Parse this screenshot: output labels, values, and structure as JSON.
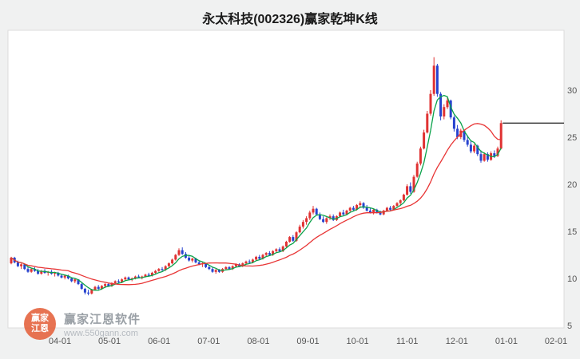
{
  "title": "永太科技(002326)赢家乾坤K线",
  "watermark": {
    "logo_line1": "赢家",
    "logo_line2": "江恩",
    "brand": "赢家江恩软件",
    "url": "www.550gann.com"
  },
  "chart_data": {
    "type": "candlestick",
    "title": "永太科技(002326)赢家乾坤K线",
    "x_labels": [
      "04-01",
      "05-01",
      "06-01",
      "07-01",
      "08-01",
      "09-01",
      "10-01",
      "11-01",
      "12-01",
      "01-01",
      "02-01"
    ],
    "y_ticks": [
      30,
      25,
      20,
      15,
      10,
      5
    ],
    "y_axis_side": "right",
    "grid": false,
    "visible_price_range": [
      5,
      36.3
    ],
    "colors": {
      "up": "#e03232",
      "down": "#2743cf",
      "ma_fast": "#0aa24a",
      "ma_slow": "#e83535",
      "feature_line": "#333333",
      "plot_bg": "#ffffff",
      "axis_text": "#555555"
    },
    "ma_fast_window": 5,
    "ma_slow_window": 18,
    "feature_line": {
      "value": 26.5,
      "color": "#333333"
    },
    "candles": [
      [
        11.6,
        12.3,
        11.5,
        12.2
      ],
      [
        12.2,
        12.3,
        11.6,
        11.7
      ],
      [
        11.7,
        11.9,
        11.2,
        11.3
      ],
      [
        11.3,
        11.6,
        11.0,
        11.5
      ],
      [
        11.5,
        11.5,
        10.9,
        11.0
      ],
      [
        11.0,
        11.2,
        10.6,
        10.7
      ],
      [
        10.7,
        11.1,
        10.6,
        11.0
      ],
      [
        11.0,
        11.2,
        10.7,
        10.8
      ],
      [
        10.8,
        11.0,
        10.4,
        10.5
      ],
      [
        10.5,
        10.9,
        10.4,
        10.8
      ],
      [
        10.8,
        11.0,
        10.5,
        10.6
      ],
      [
        10.6,
        10.8,
        10.3,
        10.7
      ],
      [
        10.7,
        10.9,
        10.4,
        10.5
      ],
      [
        10.5,
        10.7,
        10.2,
        10.6
      ],
      [
        10.6,
        10.7,
        10.2,
        10.3
      ],
      [
        10.3,
        10.5,
        10.0,
        10.1
      ],
      [
        10.1,
        10.4,
        9.9,
        10.3
      ],
      [
        10.3,
        10.4,
        9.9,
        10.0
      ],
      [
        10.0,
        10.1,
        9.6,
        9.7
      ],
      [
        9.7,
        10.0,
        9.5,
        9.9
      ],
      [
        9.9,
        9.9,
        9.3,
        9.4
      ],
      [
        9.4,
        9.5,
        8.8,
        8.9
      ],
      [
        8.9,
        9.0,
        8.3,
        8.5
      ],
      [
        8.5,
        8.8,
        8.2,
        8.4
      ],
      [
        8.4,
        8.9,
        8.3,
        8.8
      ],
      [
        8.8,
        9.2,
        8.7,
        9.1
      ],
      [
        9.1,
        9.3,
        8.8,
        8.9
      ],
      [
        8.9,
        9.3,
        8.8,
        9.2
      ],
      [
        9.2,
        9.5,
        9.0,
        9.4
      ],
      [
        9.4,
        9.5,
        9.1,
        9.2
      ],
      [
        9.2,
        9.6,
        9.1,
        9.5
      ],
      [
        9.5,
        9.8,
        9.4,
        9.7
      ],
      [
        9.7,
        9.9,
        9.5,
        9.6
      ],
      [
        9.6,
        10.0,
        9.5,
        9.9
      ],
      [
        9.9,
        10.2,
        9.8,
        10.1
      ],
      [
        10.1,
        10.2,
        9.8,
        9.9
      ],
      [
        9.9,
        10.1,
        9.7,
        10.0
      ],
      [
        10.0,
        10.3,
        9.9,
        10.2
      ],
      [
        10.2,
        10.4,
        10.0,
        10.1
      ],
      [
        10.1,
        10.3,
        9.9,
        10.2
      ],
      [
        10.2,
        10.5,
        10.1,
        10.4
      ],
      [
        10.4,
        10.6,
        10.2,
        10.3
      ],
      [
        10.3,
        10.7,
        10.2,
        10.6
      ],
      [
        10.6,
        10.9,
        10.5,
        10.8
      ],
      [
        10.8,
        11.1,
        10.7,
        11.0
      ],
      [
        11.0,
        11.2,
        10.8,
        10.9
      ],
      [
        10.9,
        11.4,
        10.8,
        11.3
      ],
      [
        11.3,
        11.7,
        11.2,
        11.6
      ],
      [
        11.6,
        12.1,
        11.5,
        12.0
      ],
      [
        12.0,
        12.6,
        11.9,
        12.5
      ],
      [
        12.5,
        13.2,
        12.4,
        13.0
      ],
      [
        13.0,
        13.3,
        12.5,
        12.6
      ],
      [
        12.6,
        12.8,
        12.1,
        12.2
      ],
      [
        12.2,
        12.4,
        11.8,
        11.9
      ],
      [
        11.9,
        12.2,
        11.7,
        12.1
      ],
      [
        12.1,
        12.2,
        11.6,
        11.7
      ],
      [
        11.7,
        11.9,
        11.4,
        11.5
      ],
      [
        11.5,
        11.7,
        11.2,
        11.6
      ],
      [
        11.6,
        11.6,
        11.1,
        11.2
      ],
      [
        11.2,
        11.4,
        10.9,
        11.0
      ],
      [
        11.0,
        11.2,
        10.6,
        10.7
      ],
      [
        10.7,
        11.0,
        10.5,
        10.9
      ],
      [
        10.9,
        11.0,
        10.6,
        10.7
      ],
      [
        10.7,
        11.1,
        10.6,
        11.0
      ],
      [
        11.0,
        11.3,
        10.9,
        11.2
      ],
      [
        11.2,
        11.3,
        10.9,
        11.0
      ],
      [
        11.0,
        11.4,
        10.9,
        11.3
      ],
      [
        11.3,
        11.6,
        11.2,
        11.5
      ],
      [
        11.5,
        11.6,
        11.2,
        11.3
      ],
      [
        11.3,
        11.7,
        11.2,
        11.6
      ],
      [
        11.6,
        11.9,
        11.5,
        11.8
      ],
      [
        11.8,
        12.0,
        11.6,
        11.7
      ],
      [
        11.7,
        12.1,
        11.6,
        12.0
      ],
      [
        12.0,
        12.4,
        11.9,
        12.3
      ],
      [
        12.3,
        12.5,
        12.0,
        12.1
      ],
      [
        12.1,
        12.6,
        12.0,
        12.5
      ],
      [
        12.5,
        12.8,
        12.3,
        12.7
      ],
      [
        12.7,
        12.9,
        12.4,
        12.5
      ],
      [
        12.5,
        13.0,
        12.4,
        12.9
      ],
      [
        12.9,
        13.2,
        12.7,
        13.1
      ],
      [
        13.1,
        13.3,
        12.8,
        12.9
      ],
      [
        12.9,
        13.5,
        12.8,
        13.4
      ],
      [
        13.4,
        14.0,
        13.3,
        13.9
      ],
      [
        13.9,
        14.5,
        13.8,
        14.4
      ],
      [
        14.4,
        14.6,
        13.9,
        14.0
      ],
      [
        14.0,
        15.0,
        13.9,
        14.9
      ],
      [
        14.9,
        15.7,
        14.8,
        15.5
      ],
      [
        15.5,
        16.2,
        15.3,
        16.0
      ],
      [
        16.0,
        16.6,
        15.7,
        16.4
      ],
      [
        16.4,
        17.2,
        16.2,
        17.0
      ],
      [
        17.0,
        17.7,
        16.8,
        17.4
      ],
      [
        17.4,
        17.5,
        16.7,
        16.8
      ],
      [
        16.8,
        17.0,
        16.2,
        16.3
      ],
      [
        16.3,
        16.6,
        15.9,
        16.0
      ],
      [
        16.0,
        16.5,
        15.8,
        16.4
      ],
      [
        16.4,
        16.8,
        16.2,
        16.6
      ],
      [
        16.6,
        16.8,
        16.1,
        16.2
      ],
      [
        16.2,
        16.7,
        16.1,
        16.6
      ],
      [
        16.6,
        17.1,
        16.5,
        17.0
      ],
      [
        17.0,
        17.3,
        16.7,
        16.8
      ],
      [
        16.8,
        17.3,
        16.7,
        17.2
      ],
      [
        17.2,
        17.6,
        17.0,
        17.5
      ],
      [
        17.5,
        17.7,
        17.2,
        17.3
      ],
      [
        17.3,
        17.9,
        17.2,
        17.8
      ],
      [
        17.8,
        18.2,
        17.6,
        18.0
      ],
      [
        18.0,
        18.1,
        17.4,
        17.5
      ],
      [
        17.5,
        17.8,
        17.1,
        17.2
      ],
      [
        17.2,
        17.5,
        16.9,
        17.0
      ],
      [
        17.0,
        17.4,
        16.8,
        17.3
      ],
      [
        17.3,
        17.4,
        16.9,
        17.0
      ],
      [
        17.0,
        17.2,
        16.7,
        16.8
      ],
      [
        16.8,
        17.3,
        16.7,
        17.2
      ],
      [
        17.2,
        17.6,
        17.1,
        17.5
      ],
      [
        17.5,
        17.7,
        17.2,
        17.3
      ],
      [
        17.3,
        17.8,
        17.2,
        17.7
      ],
      [
        17.7,
        18.1,
        17.6,
        18.0
      ],
      [
        18.0,
        18.4,
        17.8,
        18.3
      ],
      [
        18.3,
        19.0,
        18.2,
        18.9
      ],
      [
        18.9,
        20.0,
        18.8,
        19.8
      ],
      [
        19.8,
        20.2,
        19.0,
        19.2
      ],
      [
        19.2,
        21.0,
        19.1,
        20.8
      ],
      [
        20.8,
        22.4,
        20.7,
        22.2
      ],
      [
        22.2,
        24.0,
        22.0,
        23.8
      ],
      [
        23.8,
        25.8,
        23.7,
        25.5
      ],
      [
        25.5,
        27.8,
        25.4,
        27.5
      ],
      [
        27.5,
        30.0,
        27.3,
        29.6
      ],
      [
        29.6,
        33.5,
        29.4,
        32.6
      ],
      [
        32.6,
        32.8,
        29.3,
        29.6
      ],
      [
        29.6,
        29.8,
        26.8,
        27.2
      ],
      [
        27.2,
        28.5,
        26.9,
        28.2
      ],
      [
        28.2,
        29.2,
        28.0,
        28.9
      ],
      [
        28.9,
        29.0,
        26.9,
        27.1
      ],
      [
        27.1,
        27.3,
        25.6,
        25.9
      ],
      [
        25.9,
        26.3,
        24.8,
        25.0
      ],
      [
        25.0,
        25.9,
        24.8,
        25.7
      ],
      [
        25.7,
        25.8,
        24.5,
        24.7
      ],
      [
        24.7,
        25.2,
        24.0,
        24.2
      ],
      [
        24.2,
        24.6,
        23.3,
        23.5
      ],
      [
        23.5,
        24.3,
        23.3,
        24.1
      ],
      [
        24.1,
        24.2,
        23.0,
        23.2
      ],
      [
        23.2,
        23.6,
        22.3,
        22.5
      ],
      [
        22.5,
        23.4,
        22.4,
        23.2
      ],
      [
        23.2,
        23.4,
        22.4,
        22.6
      ],
      [
        22.6,
        23.5,
        22.5,
        23.3
      ],
      [
        23.3,
        23.6,
        22.8,
        23.0
      ],
      [
        23.0,
        24.0,
        22.9,
        23.8
      ],
      [
        23.8,
        26.8,
        23.7,
        26.5
      ]
    ]
  }
}
